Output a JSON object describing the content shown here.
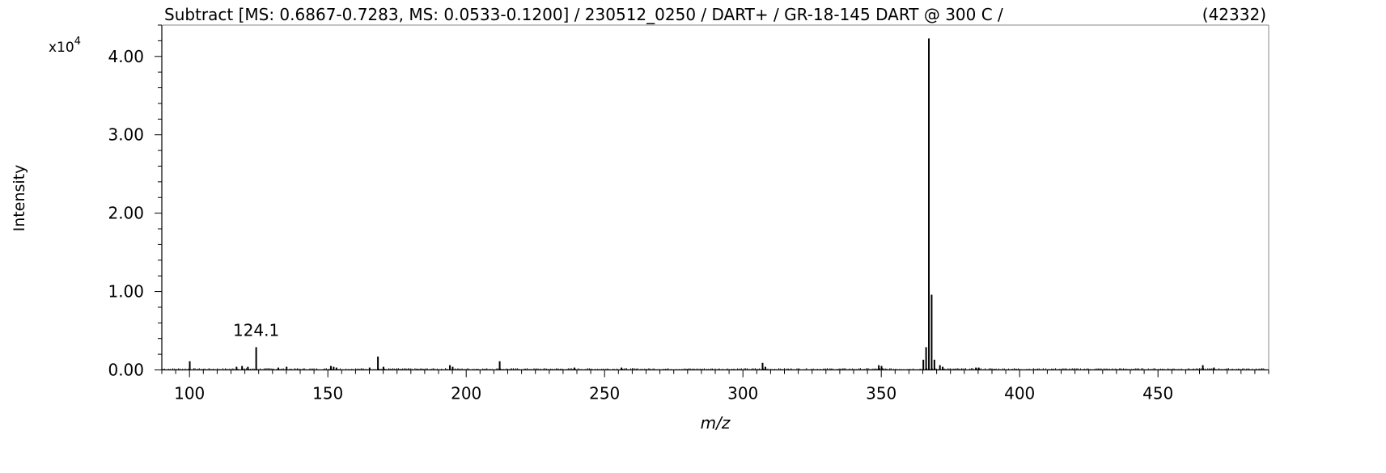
{
  "chart_data": {
    "type": "bar",
    "title": "Subtract [MS: 0.6867-0.7283, MS: 0.0533-0.1200] / 230512_0250 / DART+ / GR-18-145  DART @ 300 C /",
    "max_count_label": "(42332)",
    "xlabel": "m/z",
    "ylabel": "Intensity",
    "y_scale_label": "x10",
    "y_scale_exponent": "4",
    "xlim": [
      90,
      490
    ],
    "ylim": [
      0,
      4.4
    ],
    "x_ticks": [
      100,
      150,
      200,
      250,
      300,
      350,
      400,
      450
    ],
    "y_ticks": [
      0,
      1,
      2,
      3,
      4
    ],
    "y_tick_labels": [
      "0.00",
      "1.00",
      "2.00",
      "3.00",
      "4.00"
    ],
    "grid": false,
    "series": [
      {
        "peaks": [
          {
            "x": 100.1,
            "y": 0.11
          },
          {
            "x": 117.0,
            "y": 0.04
          },
          {
            "x": 119.0,
            "y": 0.05
          },
          {
            "x": 121.1,
            "y": 0.04
          },
          {
            "x": 124.1,
            "y": 0.29,
            "label": "124.1"
          },
          {
            "x": 132.1,
            "y": 0.03
          },
          {
            "x": 135.1,
            "y": 0.04
          },
          {
            "x": 151.1,
            "y": 0.05
          },
          {
            "x": 152.1,
            "y": 0.04
          },
          {
            "x": 153.1,
            "y": 0.03
          },
          {
            "x": 165.1,
            "y": 0.03
          },
          {
            "x": 168.1,
            "y": 0.17
          },
          {
            "x": 170.1,
            "y": 0.04
          },
          {
            "x": 194.1,
            "y": 0.06
          },
          {
            "x": 195.1,
            "y": 0.04
          },
          {
            "x": 212.1,
            "y": 0.11
          },
          {
            "x": 239.1,
            "y": 0.03
          },
          {
            "x": 256.1,
            "y": 0.03
          },
          {
            "x": 307.1,
            "y": 0.09
          },
          {
            "x": 308.1,
            "y": 0.04
          },
          {
            "x": 349.1,
            "y": 0.06
          },
          {
            "x": 350.1,
            "y": 0.05
          },
          {
            "x": 365.2,
            "y": 0.13
          },
          {
            "x": 366.2,
            "y": 0.29
          },
          {
            "x": 367.2,
            "y": 4.23
          },
          {
            "x": 368.2,
            "y": 0.96
          },
          {
            "x": 369.2,
            "y": 0.13
          },
          {
            "x": 371.2,
            "y": 0.06
          },
          {
            "x": 372.2,
            "y": 0.04
          },
          {
            "x": 384.2,
            "y": 0.03
          },
          {
            "x": 385.2,
            "y": 0.03
          },
          {
            "x": 466.2,
            "y": 0.06
          },
          {
            "x": 470.2,
            "y": 0.03
          }
        ]
      }
    ],
    "noise_level": 0.015
  }
}
